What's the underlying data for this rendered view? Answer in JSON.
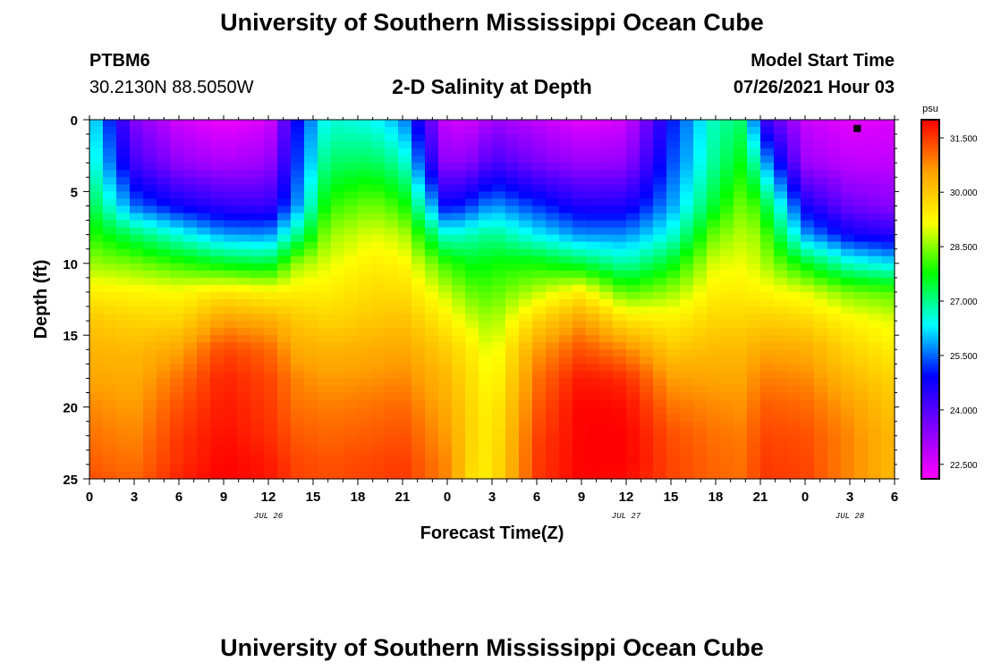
{
  "header": {
    "title": "University of Southern Mississippi Ocean Cube",
    "station_id": "PTBM6",
    "station_coords": "30.2130N  88.5050W",
    "subtitle": "2-D Salinity at Depth",
    "model_start_label": "Model Start Time",
    "model_start_value": "07/26/2021 Hour 03"
  },
  "footer": {
    "title": "University of Southern Mississippi Ocean Cube"
  },
  "colors": {
    "scale": [
      "#ff00ff",
      "#8000ff",
      "#0000ff",
      "#00ffff",
      "#00ff00",
      "#ffff00",
      "#ffa000",
      "#ff0000"
    ]
  },
  "chart_data": {
    "type": "heatmap",
    "title": "2-D Salinity at Depth",
    "xlabel": "Forecast Time(Z)",
    "ylabel": "Depth (ft)",
    "x_range": [
      0,
      54
    ],
    "y_range": [
      0,
      25
    ],
    "x_ticks": [
      0,
      3,
      6,
      9,
      12,
      15,
      18,
      21,
      24,
      27,
      30,
      33,
      36,
      39,
      42,
      45,
      48,
      51,
      54
    ],
    "x_tick_labels": [
      "0",
      "3",
      "6",
      "9",
      "12",
      "15",
      "18",
      "21",
      "0",
      "3",
      "6",
      "9",
      "12",
      "15",
      "18",
      "21",
      "0",
      "3",
      "6"
    ],
    "y_ticks": [
      0,
      5,
      10,
      15,
      20,
      25
    ],
    "y_tick_labels": [
      "0",
      "5",
      "10",
      "15",
      "20",
      "25"
    ],
    "date_labels": [
      {
        "x": 12,
        "text": "JUL 26"
      },
      {
        "x": 36,
        "text": "JUL 27"
      },
      {
        "x": 51,
        "text": "JUL 28"
      }
    ],
    "colorbar": {
      "unit": "psu",
      "range": [
        22.1,
        32.0
      ],
      "tick_values": [
        22.5,
        24.0,
        25.5,
        27.0,
        28.5,
        30.0,
        31.5
      ],
      "tick_labels": [
        "22.500",
        "24.000",
        "25.500",
        "27.000",
        "28.500",
        "30.000",
        "31.500"
      ]
    },
    "marker": {
      "x": 51.5,
      "y": 0.3
    },
    "depth_profiles": {
      "depths": [
        0,
        3,
        6,
        8,
        10,
        12,
        14,
        16,
        18,
        20,
        22,
        24,
        25
      ],
      "columns": [
        {
          "t": 0,
          "values": [
            26.5,
            26.8,
            27.5,
            28.0,
            28.6,
            29.4,
            30.0,
            30.3,
            30.5,
            30.8,
            31.0,
            31.2,
            31.3
          ]
        },
        {
          "t": 3,
          "values": [
            23.5,
            24.2,
            25.5,
            27.2,
            28.4,
            29.3,
            29.8,
            30.2,
            30.4,
            30.6,
            30.8,
            31.0,
            31.1
          ]
        },
        {
          "t": 6,
          "values": [
            22.6,
            23.3,
            24.8,
            26.5,
            28.0,
            29.2,
            29.8,
            30.5,
            31.0,
            31.3,
            31.5,
            31.6,
            31.7
          ]
        },
        {
          "t": 9,
          "values": [
            22.3,
            23.0,
            24.4,
            25.8,
            27.6,
            29.5,
            30.6,
            31.4,
            31.7,
            31.8,
            31.9,
            32.0,
            32.0
          ]
        },
        {
          "t": 12,
          "values": [
            22.5,
            23.2,
            24.3,
            25.7,
            27.4,
            29.3,
            30.4,
            31.1,
            31.4,
            31.5,
            31.6,
            31.8,
            31.8
          ]
        },
        {
          "t": 14,
          "values": [
            25.0,
            25.3,
            25.8,
            27.0,
            28.6,
            29.4,
            30.0,
            30.4,
            30.8,
            31.0,
            31.2,
            31.4,
            31.4
          ]
        },
        {
          "t": 16,
          "values": [
            26.6,
            27.2,
            28.0,
            28.6,
            29.0,
            29.4,
            29.8,
            30.3,
            30.6,
            30.9,
            31.1,
            31.3,
            31.3
          ]
        },
        {
          "t": 19,
          "values": [
            26.4,
            27.3,
            28.4,
            29.0,
            29.4,
            29.7,
            30.0,
            30.4,
            30.7,
            31.0,
            31.2,
            31.4,
            31.4
          ]
        },
        {
          "t": 21,
          "values": [
            25.8,
            26.8,
            28.0,
            28.8,
            29.3,
            29.7,
            30.1,
            30.5,
            30.8,
            31.1,
            31.3,
            31.5,
            31.5
          ]
        },
        {
          "t": 24,
          "values": [
            22.6,
            23.2,
            24.8,
            26.5,
            28.0,
            28.8,
            29.4,
            29.9,
            30.2,
            30.4,
            30.6,
            30.8,
            30.8
          ]
        },
        {
          "t": 26,
          "values": [
            22.7,
            23.6,
            25.4,
            26.8,
            27.6,
            28.2,
            28.8,
            29.3,
            29.5,
            29.6,
            29.6,
            29.5,
            29.4
          ]
        },
        {
          "t": 27,
          "values": [
            23.2,
            24.2,
            25.8,
            27.0,
            27.8,
            28.2,
            28.6,
            28.9,
            29.1,
            29.3,
            29.4,
            29.5,
            29.5
          ]
        },
        {
          "t": 30,
          "values": [
            22.8,
            23.6,
            25.2,
            26.3,
            27.8,
            28.8,
            29.8,
            30.6,
            31.0,
            31.2,
            31.4,
            31.5,
            31.5
          ]
        },
        {
          "t": 33,
          "values": [
            22.4,
            23.2,
            24.6,
            25.7,
            27.4,
            29.4,
            30.6,
            31.3,
            31.8,
            32.0,
            32.0,
            32.0,
            32.0
          ]
        },
        {
          "t": 36,
          "values": [
            22.6,
            23.3,
            24.6,
            25.7,
            26.8,
            28.2,
            29.6,
            30.8,
            31.6,
            31.9,
            32.0,
            32.0,
            31.9
          ]
        },
        {
          "t": 39,
          "values": [
            25.0,
            25.3,
            25.8,
            26.5,
            27.6,
            28.6,
            29.4,
            30.0,
            30.6,
            31.0,
            31.3,
            31.4,
            31.4
          ]
        },
        {
          "t": 42,
          "values": [
            26.8,
            27.0,
            27.6,
            28.4,
            29.0,
            29.4,
            29.8,
            30.2,
            30.5,
            30.8,
            31.0,
            31.1,
            31.1
          ]
        },
        {
          "t": 44,
          "values": [
            27.2,
            27.8,
            28.5,
            28.8,
            29.1,
            29.4,
            29.8,
            30.2,
            30.5,
            30.7,
            30.9,
            31.0,
            31.0
          ]
        },
        {
          "t": 45,
          "values": [
            24.5,
            26.2,
            27.8,
            28.5,
            28.8,
            29.3,
            29.9,
            30.5,
            30.9,
            31.2,
            31.4,
            31.5,
            31.5
          ]
        },
        {
          "t": 48,
          "values": [
            22.7,
            23.2,
            24.7,
            25.8,
            27.6,
            29.0,
            29.8,
            30.4,
            30.8,
            31.1,
            31.3,
            31.4,
            31.4
          ]
        },
        {
          "t": 51,
          "values": [
            22.4,
            22.8,
            23.7,
            24.8,
            26.6,
            28.4,
            29.3,
            29.8,
            30.2,
            30.6,
            30.8,
            30.8,
            30.8
          ]
        },
        {
          "t": 54,
          "values": [
            22.5,
            22.8,
            23.4,
            24.5,
            26.2,
            28.2,
            29.0,
            29.4,
            29.8,
            30.0,
            30.2,
            30.2,
            30.2
          ]
        }
      ]
    }
  }
}
